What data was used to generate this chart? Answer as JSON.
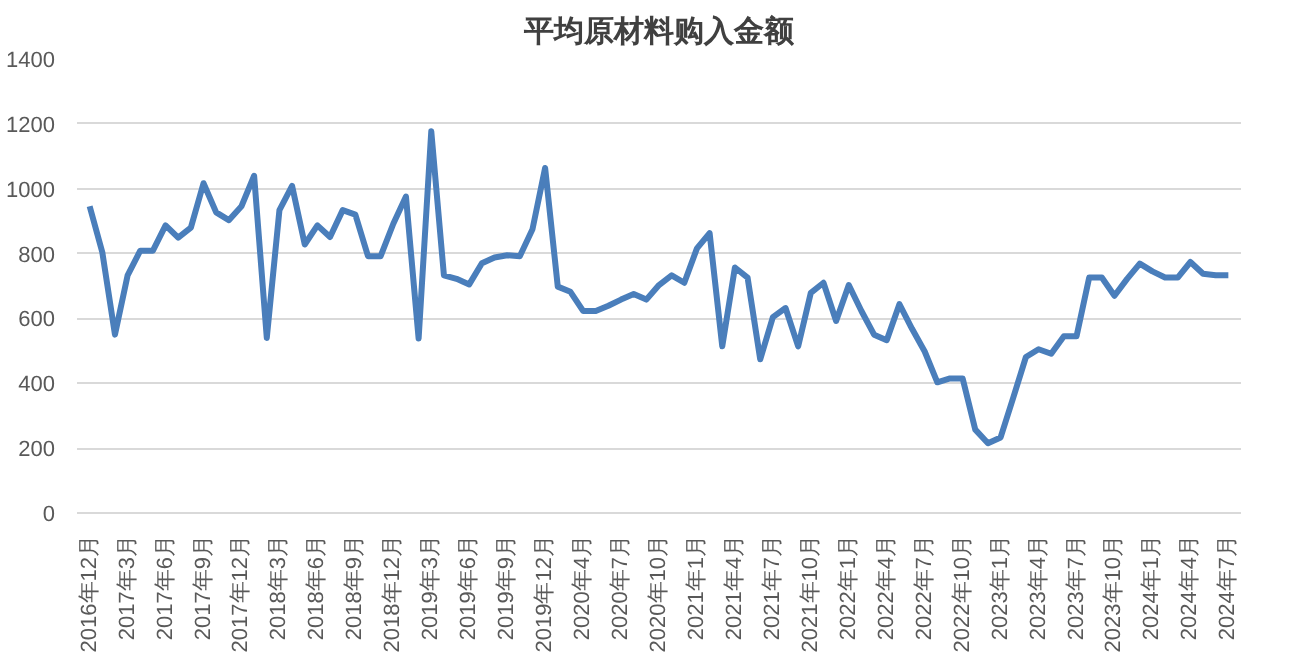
{
  "chart_data": {
    "type": "line",
    "title": "平均原材料购入金额",
    "categories": [
      "2016年12月",
      null,
      null,
      "2017年3月",
      null,
      null,
      "2017年6月",
      null,
      null,
      "2017年9月",
      null,
      null,
      "2017年12月",
      null,
      null,
      "2018年3月",
      null,
      null,
      "2018年6月",
      null,
      null,
      "2018年9月",
      null,
      null,
      "2018年12月",
      null,
      null,
      "2019年3月",
      null,
      null,
      "2019年6月",
      null,
      null,
      "2019年9月",
      null,
      null,
      "2019年12月",
      null,
      null,
      "2020年4月",
      null,
      null,
      "2020年7月",
      null,
      null,
      "2020年10月",
      null,
      null,
      "2021年1月",
      null,
      null,
      "2021年4月",
      null,
      null,
      "2021年7月",
      null,
      null,
      "2021年10月",
      null,
      null,
      "2022年1月",
      null,
      null,
      "2022年4月",
      null,
      null,
      "2022年7月",
      null,
      null,
      "2022年10月",
      null,
      null,
      "2023年1月",
      null,
      null,
      "2023年4月",
      null,
      null,
      "2023年7月",
      null,
      null,
      "2023年10月",
      null,
      null,
      "2024年1月",
      null,
      null,
      "2024年4月",
      null,
      null,
      "2024年7月"
    ],
    "series": [
      {
        "color": "#4a7ebb",
        "values": [
          946,
          804,
          550,
          733,
          809,
          809,
          887,
          849,
          880,
          1017,
          927,
          903,
          946,
          1040,
          540,
          934,
          1009,
          828,
          887,
          851,
          934,
          920,
          792,
          792,
          892,
          976,
          538,
          1177,
          733,
          722,
          705,
          770,
          788,
          795,
          792,
          875,
          1064,
          698,
          682,
          623,
          623,
          639,
          658,
          675,
          658,
          703,
          733,
          710,
          816,
          863,
          514,
          757,
          726,
          474,
          604,
          632,
          514,
          679,
          710,
          592,
          703,
          623,
          550,
          533,
          644,
          568,
          498,
          403,
          415,
          415,
          257,
          215,
          233,
          356,
          481,
          505,
          491,
          545,
          545,
          726,
          726,
          670,
          722,
          769,
          745,
          726,
          726,
          774,
          738,
          733,
          733
        ]
      }
    ],
    "ylim": [
      0,
      1400
    ],
    "yticks": [
      0,
      200,
      400,
      600,
      800,
      1000,
      1200,
      1400
    ],
    "grid": "y",
    "marker": "none",
    "line_style": "solid"
  }
}
